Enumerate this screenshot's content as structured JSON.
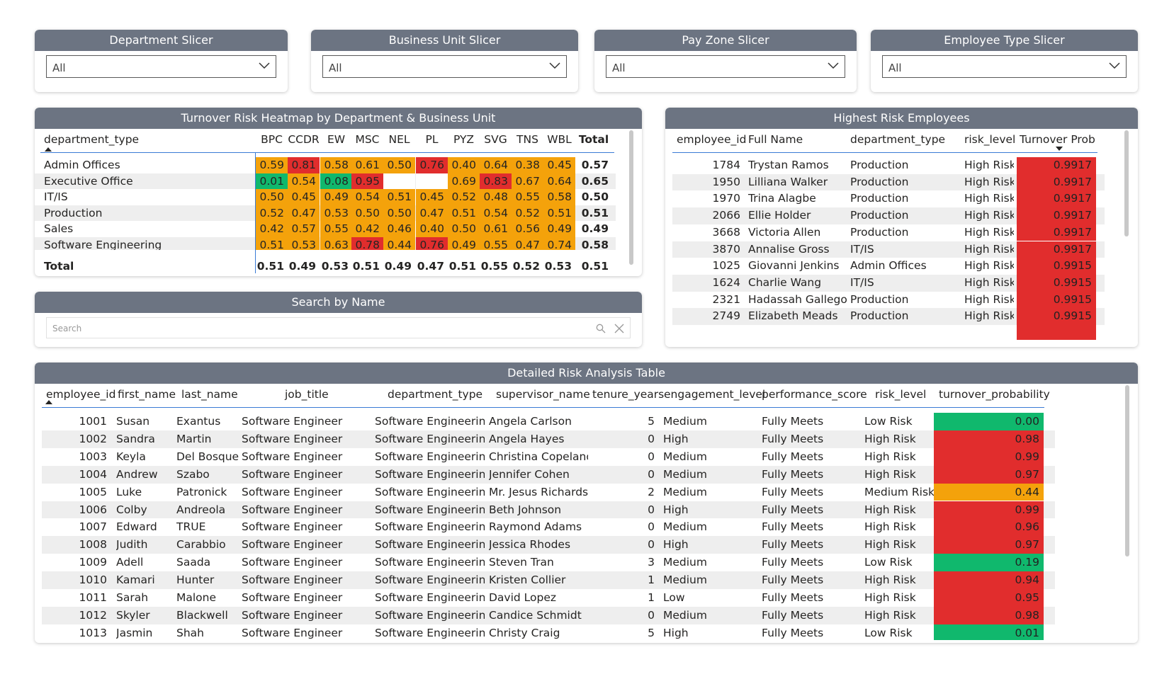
{
  "colors": {
    "header_bg": "#6c7482",
    "high": "#e12d2d",
    "medium": "#f4a20b",
    "low": "#10b86d"
  },
  "slicers": [
    {
      "title": "Department Slicer",
      "value": "All"
    },
    {
      "title": "Business Unit Slicer",
      "value": "All"
    },
    {
      "title": "Pay Zone Slicer",
      "value": "All"
    },
    {
      "title": "Employee Type Slicer",
      "value": "All"
    }
  ],
  "heatmap": {
    "title": "Turnover Risk Heatmap by Department & Business Unit",
    "row_header": "department_type",
    "columns": [
      "BPC",
      "CCDR",
      "EW",
      "MSC",
      "NEL",
      "PL",
      "PYZ",
      "SVG",
      "TNS",
      "WBL"
    ],
    "total_label": "Total",
    "rows": [
      {
        "name": "Admin Offices",
        "values": [
          "0.59",
          "0.81",
          "0.58",
          "0.61",
          "0.50",
          "0.76",
          "0.40",
          "0.64",
          "0.38",
          "0.45"
        ],
        "total": "0.57"
      },
      {
        "name": "Executive Office",
        "values": [
          "0.01",
          "0.54",
          "0.08",
          "0.95",
          "",
          "",
          "0.69",
          "0.83",
          "0.67",
          "0.64"
        ],
        "total": "0.65"
      },
      {
        "name": "IT/IS",
        "values": [
          "0.50",
          "0.45",
          "0.49",
          "0.54",
          "0.51",
          "0.45",
          "0.52",
          "0.48",
          "0.55",
          "0.58"
        ],
        "total": "0.50"
      },
      {
        "name": "Production",
        "values": [
          "0.52",
          "0.47",
          "0.53",
          "0.50",
          "0.50",
          "0.47",
          "0.51",
          "0.54",
          "0.52",
          "0.51"
        ],
        "total": "0.51"
      },
      {
        "name": "Sales",
        "values": [
          "0.42",
          "0.57",
          "0.55",
          "0.42",
          "0.46",
          "0.40",
          "0.50",
          "0.61",
          "0.56",
          "0.49"
        ],
        "total": "0.49"
      },
      {
        "name": "Software Engineering",
        "values": [
          "0.51",
          "0.53",
          "0.63",
          "0.78",
          "0.44",
          "0.76",
          "0.49",
          "0.55",
          "0.47",
          "0.74"
        ],
        "total": "0.58"
      }
    ],
    "totals": [
      "0.51",
      "0.49",
      "0.53",
      "0.51",
      "0.49",
      "0.47",
      "0.51",
      "0.55",
      "0.52",
      "0.53"
    ],
    "grand_total": "0.51"
  },
  "search": {
    "title": "Search by Name",
    "placeholder": "Search"
  },
  "highest_risk": {
    "title": "Highest Risk Employees",
    "columns": [
      "employee_id",
      "Full Name",
      "department_type",
      "risk_level",
      "Turnover Prob"
    ],
    "rows": [
      [
        "1784",
        "Trystan Ramos",
        "Production",
        "High Risk",
        "0.9917"
      ],
      [
        "1950",
        "Lilliana Walker",
        "Production",
        "High Risk",
        "0.9917"
      ],
      [
        "1970",
        "Trina Alagbe",
        "Production",
        "High Risk",
        "0.9917"
      ],
      [
        "2066",
        "Ellie Holder",
        "Production",
        "High Risk",
        "0.9917"
      ],
      [
        "3668",
        "Victoria Allen",
        "Production",
        "High Risk",
        "0.9917"
      ],
      [
        "3870",
        "Annalise Gross",
        "IT/IS",
        "High Risk",
        "0.9917"
      ],
      [
        "1025",
        "Giovanni Jenkins",
        "Admin Offices",
        "High Risk",
        "0.9915"
      ],
      [
        "1624",
        "Charlie Wang",
        "IT/IS",
        "High Risk",
        "0.9915"
      ],
      [
        "2321",
        "Hadassah Gallegos",
        "Production",
        "High Risk",
        "0.9915"
      ],
      [
        "2749",
        "Elizabeth Meads",
        "Production",
        "High Risk",
        "0.9915"
      ]
    ]
  },
  "detail": {
    "title": "Detailed Risk Analysis Table",
    "columns": [
      "employee_id",
      "first_name",
      "last_name",
      "job_title",
      "department_type",
      "supervisor_name",
      "tenure_years",
      "engagement_level",
      "performance_score",
      "risk_level",
      "turnover_probability"
    ],
    "rows": [
      [
        "1001",
        "Susan",
        "Exantus",
        "Software Engineer",
        "Software Engineering",
        "Angela Carlson",
        "5",
        "Medium",
        "Fully Meets",
        "Low Risk",
        "0.00"
      ],
      [
        "1002",
        "Sandra",
        "Martin",
        "Software Engineer",
        "Software Engineering",
        "Angela Hayes",
        "0",
        "High",
        "Fully Meets",
        "High Risk",
        "0.98"
      ],
      [
        "1003",
        "Keyla",
        "Del Bosque",
        "Software Engineer",
        "Software Engineering",
        "Christina Copeland",
        "0",
        "Medium",
        "Fully Meets",
        "High Risk",
        "0.99"
      ],
      [
        "1004",
        "Andrew",
        "Szabo",
        "Software Engineer",
        "Software Engineering",
        "Jennifer Cohen",
        "0",
        "Medium",
        "Fully Meets",
        "High Risk",
        "0.97"
      ],
      [
        "1005",
        "Luke",
        "Patronick",
        "Software Engineer",
        "Software Engineering",
        "Mr. Jesus Richards",
        "2",
        "Medium",
        "Fully Meets",
        "Medium Risk",
        "0.44"
      ],
      [
        "1006",
        "Colby",
        "Andreola",
        "Software Engineer",
        "Software Engineering",
        "Beth Johnson",
        "0",
        "High",
        "Fully Meets",
        "High Risk",
        "0.99"
      ],
      [
        "1007",
        "Edward",
        "TRUE",
        "Software Engineer",
        "Software Engineering",
        "Raymond Adams",
        "0",
        "Medium",
        "Fully Meets",
        "High Risk",
        "0.96"
      ],
      [
        "1008",
        "Judith",
        "Carabbio",
        "Software Engineer",
        "Software Engineering",
        "Jessica Rhodes",
        "0",
        "High",
        "Fully Meets",
        "High Risk",
        "0.97"
      ],
      [
        "1009",
        "Adell",
        "Saada",
        "Software Engineer",
        "Software Engineering",
        "Steven Tran",
        "3",
        "Medium",
        "Fully Meets",
        "Low Risk",
        "0.19"
      ],
      [
        "1010",
        "Kamari",
        "Hunter",
        "Software Engineer",
        "Software Engineering",
        "Kristen Collier",
        "1",
        "Medium",
        "Fully Meets",
        "High Risk",
        "0.94"
      ],
      [
        "1011",
        "Sarah",
        "Malone",
        "Software Engineer",
        "Software Engineering",
        "David Lopez",
        "1",
        "Low",
        "Fully Meets",
        "High Risk",
        "0.95"
      ],
      [
        "1012",
        "Skyler",
        "Blackwell",
        "Software Engineer",
        "Software Engineering",
        "Candice Schmidt",
        "0",
        "Medium",
        "Fully Meets",
        "High Risk",
        "0.98"
      ],
      [
        "1013",
        "Jasmin",
        "Shah",
        "Software Engineer",
        "Software Engineering",
        "Christy Craig",
        "5",
        "High",
        "Fully Meets",
        "Low Risk",
        "0.01"
      ]
    ]
  }
}
